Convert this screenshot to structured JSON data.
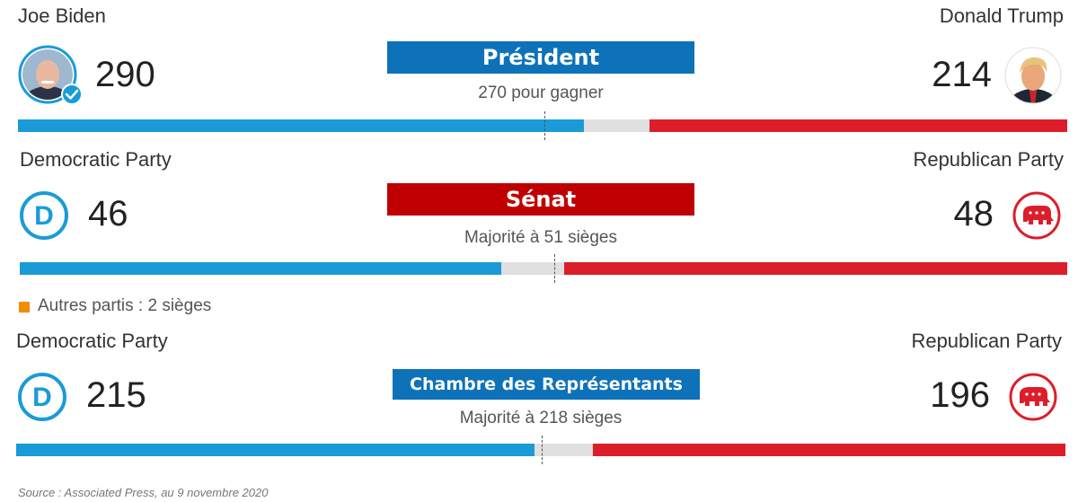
{
  "colors": {
    "democrat": "#1a9bd7",
    "republican": "#dc1e2a",
    "other": "#e0e0e0",
    "president_banner": "#0d72b9",
    "senate_banner": "#c00000",
    "house_banner": "#0d72b9",
    "others_marker": "#f28c00"
  },
  "president": {
    "left_name": "Joe Biden",
    "left_count": "290",
    "right_name": "Donald Trump",
    "right_count": "214",
    "banner": "Président",
    "subtitle": "270 pour gagner",
    "left_icon": "biden-portrait",
    "left_badge_icon": "check-badge",
    "right_icon": "trump-portrait"
  },
  "senate": {
    "left_name": "Democratic Party",
    "left_count": "46",
    "right_name": "Republican Party",
    "right_count": "48",
    "banner": "Sénat",
    "subtitle": "Majorité à 51 sièges",
    "others_note": "Autres partis : 2 sièges",
    "left_icon": "democrat-logo",
    "right_icon": "republican-elephant"
  },
  "house": {
    "left_name": "Democratic Party",
    "left_count": "215",
    "right_name": "Republican Party",
    "right_count": "196",
    "banner": "Chambre des Représentants",
    "subtitle": "Majorité à 218 sièges",
    "left_icon": "democrat-logo",
    "right_icon": "republican-elephant"
  },
  "source": "Source : Associated Press, au 9 novembre 2020",
  "chart_data": [
    {
      "type": "bar",
      "title": "Président",
      "total": 538,
      "threshold": 270,
      "series": [
        {
          "name": "Joe Biden",
          "values": [
            290
          ]
        },
        {
          "name": "Donald Trump",
          "values": [
            214
          ]
        }
      ]
    },
    {
      "type": "bar",
      "title": "Sénat",
      "total": 100,
      "threshold": 51,
      "series": [
        {
          "name": "Democratic Party",
          "values": [
            46
          ]
        },
        {
          "name": "Republican Party",
          "values": [
            48
          ]
        }
      ]
    },
    {
      "type": "bar",
      "title": "Chambre des Représentants",
      "total": 435,
      "threshold": 218,
      "series": [
        {
          "name": "Democratic Party",
          "values": [
            215
          ]
        },
        {
          "name": "Republican Party",
          "values": [
            196
          ]
        }
      ]
    }
  ]
}
